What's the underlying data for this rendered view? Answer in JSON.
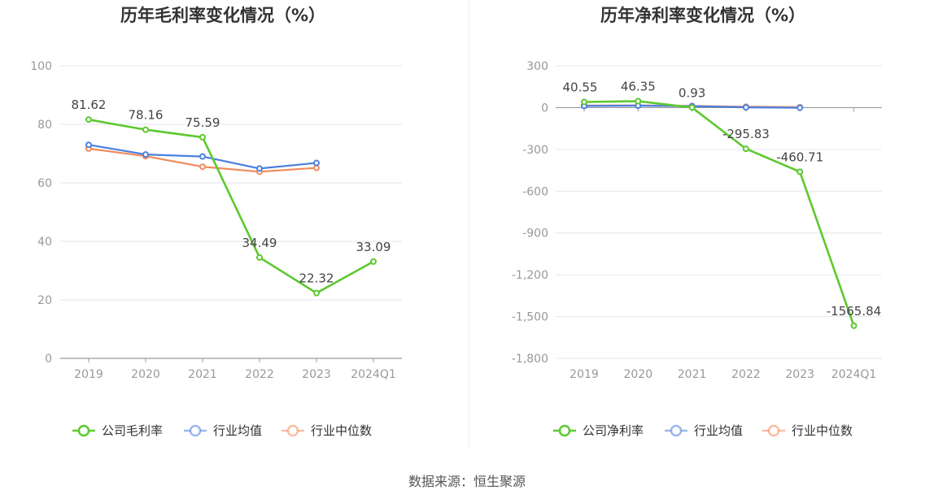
{
  "source": "数据来源：恒生聚源",
  "charts": [
    {
      "title": "历年毛利率变化情况（%）",
      "categories": [
        "2019",
        "2020",
        "2021",
        "2022",
        "2023",
        "2024Q1"
      ],
      "y_ticks": [
        "100",
        "80",
        "60",
        "40",
        "20",
        "0"
      ],
      "legend": [
        "公司毛利率",
        "行业均值",
        "行业中位数"
      ]
    },
    {
      "title": "历年净利率变化情况（%）",
      "categories": [
        "2019",
        "2020",
        "2021",
        "2022",
        "2023",
        "2024Q1"
      ],
      "y_ticks": [
        "300",
        "0",
        "-300",
        "-600",
        "-900",
        "-1,200",
        "-1,500",
        "-1,800"
      ],
      "legend": [
        "公司净利率",
        "行业均值",
        "行业中位数"
      ]
    }
  ],
  "colors": {
    "company": "#5cc92e",
    "avg": "#4a7fe0",
    "median": "#f08a5d"
  },
  "chart_data": [
    {
      "type": "line",
      "title": "历年毛利率变化情况（%）",
      "categories": [
        "2019",
        "2020",
        "2021",
        "2022",
        "2023",
        "2024Q1"
      ],
      "ylim": [
        0,
        100
      ],
      "series": [
        {
          "name": "公司毛利率",
          "values": [
            81.62,
            78.16,
            75.59,
            34.49,
            22.32,
            33.09
          ],
          "labels": [
            "81.62",
            "78.16",
            "75.59",
            "34.49",
            "22.32",
            "33.09"
          ]
        },
        {
          "name": "行业均值",
          "values": [
            73.0,
            69.7,
            69.0,
            64.9,
            66.8,
            null
          ]
        },
        {
          "name": "行业中位数",
          "values": [
            71.7,
            69.1,
            65.5,
            63.8,
            65.1,
            null
          ]
        }
      ]
    },
    {
      "type": "line",
      "title": "历年净利率变化情况（%）",
      "categories": [
        "2019",
        "2020",
        "2021",
        "2022",
        "2023",
        "2024Q1"
      ],
      "ylim": [
        -1800,
        300
      ],
      "series": [
        {
          "name": "公司净利率",
          "values": [
            40.55,
            46.35,
            0.93,
            -295.83,
            -460.71,
            -1565.84
          ],
          "labels": [
            "40.55",
            "46.35",
            "0.93",
            "-295.83",
            "-460.71",
            "-1565.84"
          ]
        },
        {
          "name": "行业均值",
          "values": [
            12,
            14,
            10,
            2,
            -1,
            null
          ]
        },
        {
          "name": "行业中位数",
          "values": [
            15,
            16,
            12,
            6,
            3,
            null
          ]
        }
      ]
    }
  ]
}
